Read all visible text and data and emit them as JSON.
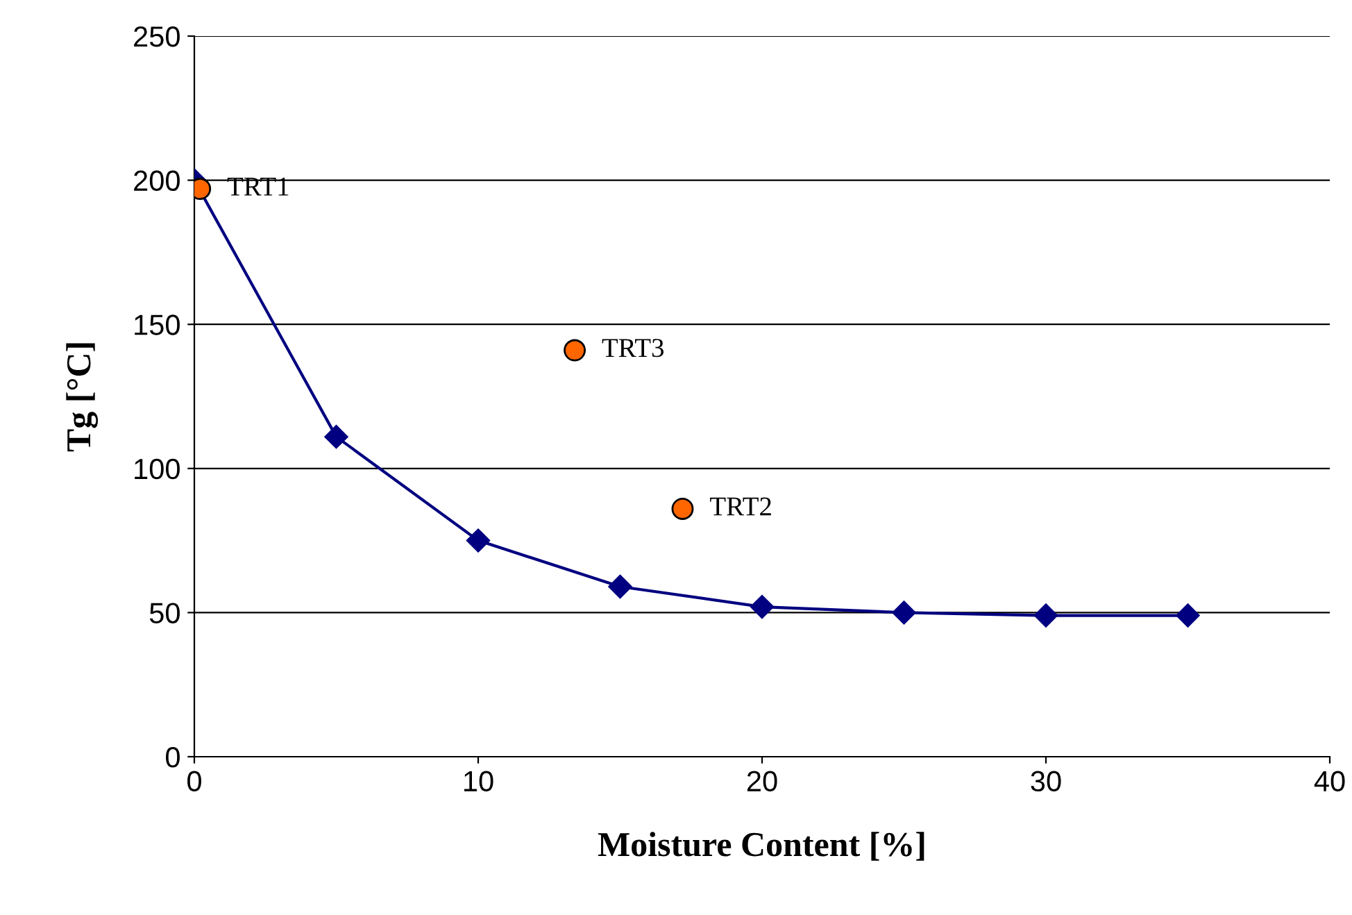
{
  "chart_data": {
    "type": "line",
    "xlabel": "Moisture Content [%]",
    "ylabel": "Tg [°C]",
    "xlim": [
      0,
      40
    ],
    "xticks": [
      0,
      10,
      20,
      30,
      40
    ],
    "ylim": [
      0,
      250
    ],
    "yticks": [
      0,
      50,
      100,
      150,
      200,
      250
    ],
    "grid": "y",
    "legend": false,
    "series": [
      {
        "color": "#000080",
        "marker": "diamond",
        "line_style": "solid",
        "x": [
          0,
          5,
          10,
          15,
          20,
          25,
          30,
          35
        ],
        "values": [
          200,
          111,
          75,
          59,
          52,
          50,
          49,
          49
        ]
      },
      {
        "type": "scatter",
        "color": "#ff6600",
        "marker": "circle",
        "x": [
          0.2,
          13.4,
          17.2
        ],
        "values": [
          197,
          141,
          86
        ]
      }
    ],
    "annotations": [
      {
        "text": "TRT1",
        "x": 0.2,
        "y": 197
      },
      {
        "text": "TRT3",
        "x": 13.4,
        "y": 141
      },
      {
        "text": "TRT2",
        "x": 17.2,
        "y": 86
      }
    ]
  }
}
